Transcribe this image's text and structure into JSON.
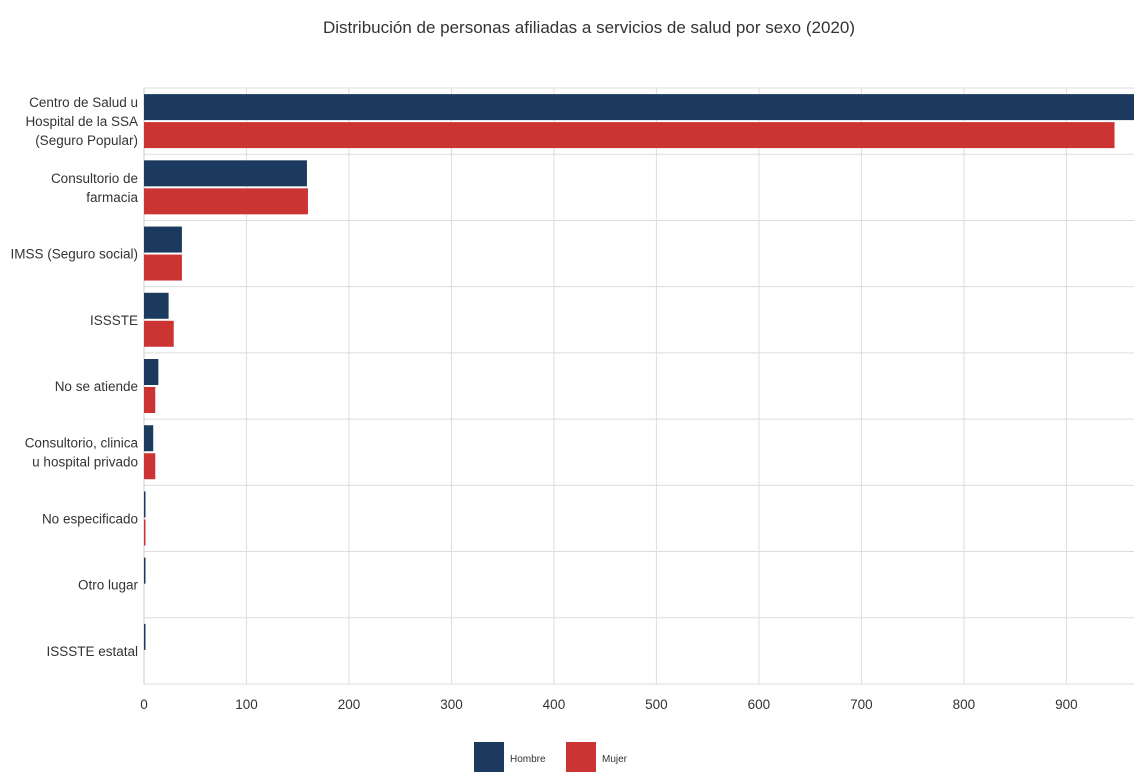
{
  "chart_data": {
    "type": "bar",
    "orientation": "horizontal",
    "title": "Distribución de personas afiliadas a servicios de salud por sexo (2020)",
    "categories": [
      [
        "Centro de Salud u",
        "Hospital de la SSA",
        "(Seguro Popular)"
      ],
      [
        "Consultorio de",
        "farmacia"
      ],
      [
        "IMSS (Seguro social)"
      ],
      [
        "ISSSTE"
      ],
      [
        "No se atiende"
      ],
      [
        "Consultorio, clinica",
        "u hospital privado"
      ],
      [
        "No especificado"
      ],
      [
        "Otro lugar"
      ],
      [
        "ISSSTE estatal"
      ]
    ],
    "series": [
      {
        "name": "Hombre",
        "color": "#1c3a5e",
        "values": [
          966,
          159,
          37,
          24,
          14,
          9,
          1,
          1,
          1
        ]
      },
      {
        "name": "Mujer",
        "color": "#cc3333",
        "values": [
          947,
          160,
          37,
          29,
          11,
          11,
          1,
          0,
          0
        ]
      }
    ],
    "xlim": [
      0,
      966
    ],
    "xticks": [
      0,
      100,
      200,
      300,
      400,
      500,
      600,
      700,
      800,
      900
    ],
    "grid": true,
    "legend": "bottom-center"
  }
}
